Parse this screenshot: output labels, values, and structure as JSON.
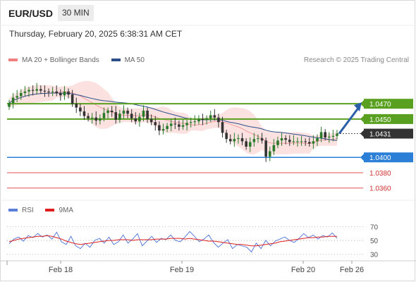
{
  "header": {
    "symbol": "EUR/USD",
    "interval": "30 MIN",
    "timestamp": "Thursday, February 20, 2025 6:38:31 AM CET"
  },
  "legend": {
    "bollinger_label": "MA 20 + Bollinger Bands",
    "bollinger_color": "#f08080",
    "ma50_label": "MA 50",
    "ma50_color": "#2c4f8a"
  },
  "credit": "Research © 2025 Trading Central",
  "rsi_legend": {
    "rsi_label": "RSI",
    "rsi_color": "#5a7fd8",
    "ma9_label": "9MA",
    "ma9_color": "#e02020"
  },
  "colors": {
    "up_candle": "#2a7a2a",
    "down_candle": "#333333",
    "resistance_line": "#5aa020",
    "support_line": "#2b7fd6",
    "support_extra_line": "#e05050",
    "last_price_bg": "#333333",
    "arrow": "#2b5fa8",
    "bollinger_fill": "#fbdcdc"
  },
  "chart_data": {
    "type": "candlestick",
    "title": "EUR/USD",
    "timeframe": "30 MIN",
    "ylim": [
      1.0345,
      1.0518
    ],
    "x_ticks": [
      "Feb 18",
      "Feb 19",
      "Feb 20",
      "Feb 26"
    ],
    "levels": [
      {
        "name": "resistance_2",
        "value": 1.047,
        "label": "1.0470",
        "style": "resistance"
      },
      {
        "name": "resistance_1",
        "value": 1.045,
        "label": "1.0450",
        "style": "resistance"
      },
      {
        "name": "last_price",
        "value": 1.0431,
        "label": "1.0431",
        "style": "last"
      },
      {
        "name": "pivot",
        "value": 1.04,
        "label": "1.0400",
        "style": "pivot"
      },
      {
        "name": "support_1",
        "value": 1.038,
        "label": "1.0380",
        "style": "support"
      },
      {
        "name": "support_2",
        "value": 1.036,
        "label": "1.0360",
        "style": "support"
      }
    ],
    "close_series": [
      1.0471,
      1.0478,
      1.048,
      1.0484,
      1.0486,
      1.0488,
      1.0487,
      1.0489,
      1.0487,
      1.0486,
      1.0485,
      1.0486,
      1.0484,
      1.0481,
      1.0486,
      1.0482,
      1.047,
      1.0465,
      1.046,
      1.0454,
      1.0451,
      1.0452,
      1.0448,
      1.0451,
      1.0458,
      1.0461,
      1.0459,
      1.0449,
      1.0457,
      1.0461,
      1.0457,
      1.0451,
      1.0447,
      1.0453,
      1.0461,
      1.045,
      1.0446,
      1.0442,
      1.0435,
      1.0437,
      1.0441,
      1.0444,
      1.0443,
      1.044,
      1.0442,
      1.0445,
      1.0446,
      1.0447,
      1.045,
      1.0449,
      1.0451,
      1.0455,
      1.0452,
      1.0446,
      1.0432,
      1.0424,
      1.0421,
      1.0424,
      1.0425,
      1.0421,
      1.0414,
      1.042,
      1.0424,
      1.0425,
      1.0422,
      1.0401,
      1.0408,
      1.0416,
      1.0422,
      1.0425,
      1.0423,
      1.042,
      1.0421,
      1.0421,
      1.0421,
      1.042,
      1.0418,
      1.0421,
      1.0425,
      1.0433,
      1.0426,
      1.0427,
      1.0428,
      1.0431
    ],
    "projection": {
      "from": 1.0431,
      "to": 1.047
    },
    "rsi": {
      "ylim": [
        20,
        80
      ],
      "ticks": [
        70,
        50,
        30
      ],
      "rsi_series": [
        45,
        52,
        55,
        49,
        57,
        54,
        60,
        55,
        58,
        52,
        62,
        48,
        44,
        56,
        42,
        38,
        46,
        40,
        50,
        53,
        46,
        55,
        44,
        48,
        58,
        46,
        52,
        60,
        42,
        49,
        56,
        47,
        53,
        51,
        58,
        50,
        48,
        55,
        63,
        56,
        48,
        52,
        58,
        47,
        40,
        46,
        51,
        38,
        44,
        42,
        40,
        33,
        46,
        38,
        50,
        42,
        49,
        52,
        55,
        50,
        47,
        53,
        60,
        54,
        58,
        52,
        57,
        55,
        61,
        53
      ],
      "ma9_series": [
        48,
        50,
        52,
        53,
        54,
        55,
        56,
        56,
        57,
        56,
        54,
        52,
        49,
        47,
        45,
        44,
        45,
        46,
        47,
        48,
        49,
        50,
        50,
        51,
        51,
        51,
        50,
        51,
        51,
        51,
        51,
        52,
        52,
        52,
        53,
        53,
        53,
        52,
        53,
        52,
        51,
        50,
        49,
        49,
        48,
        47,
        46,
        45,
        44,
        44,
        43,
        42,
        42,
        43,
        44,
        45,
        46,
        48,
        49,
        50,
        51,
        52,
        53,
        54,
        54,
        55,
        55,
        56,
        56,
        56
      ]
    }
  }
}
